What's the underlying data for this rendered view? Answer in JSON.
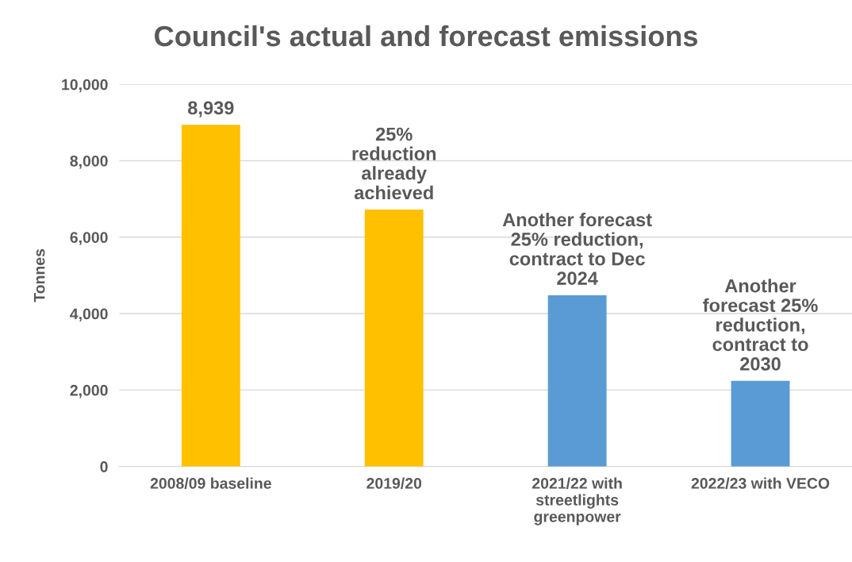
{
  "chart_data": {
    "type": "bar",
    "title": "Council's actual and forecast emissions",
    "ylabel": "Tonnes",
    "categories": [
      "2008/09 baseline",
      "2019/20",
      "2021/22 with\nstreetlights\ngreenpower",
      "2022/23 with VECO"
    ],
    "values": [
      8939,
      6720,
      4480,
      2240
    ],
    "colors": [
      "#ffc000",
      "#ffc000",
      "#5b9bd5",
      "#5b9bd5"
    ],
    "value_labels": [
      "8,939",
      null,
      null,
      null
    ],
    "annotations": [
      {
        "text": "25%\nreduction\nalready\nachieved",
        "x": "2019/20",
        "y": 6720
      },
      {
        "text": "Another forecast\n25% reduction,\ncontract to Dec\n2024",
        "x": "2021/22 with\nstreetlights\ngreenpower",
        "y": 4480
      },
      {
        "text": "Another\nforecast 25%\nreduction,\ncontract to\n2030",
        "x": "2022/23 with VECO",
        "y": 2240
      }
    ],
    "ylim": [
      0,
      10000
    ],
    "yticks": [
      {
        "value": 0,
        "label": "0"
      },
      {
        "value": 2000,
        "label": "2,000"
      },
      {
        "value": 4000,
        "label": "4,000"
      },
      {
        "value": 6000,
        "label": "6,000"
      },
      {
        "value": 8000,
        "label": "8,000"
      },
      {
        "value": 10000,
        "label": "10,000"
      }
    ],
    "grid": "y"
  }
}
